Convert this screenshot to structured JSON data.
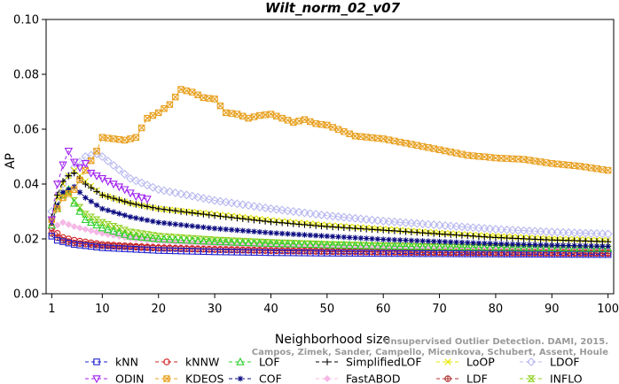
{
  "chart_data": {
    "type": "line",
    "title": "Wilt_norm_02_v07",
    "xlabel": "Neighborhood size",
    "ylabel": "AP",
    "xlim": [
      0,
      101
    ],
    "ylim": [
      0,
      0.1
    ],
    "x_ticks": [
      1,
      10,
      20,
      30,
      40,
      50,
      60,
      70,
      80,
      90,
      100
    ],
    "y_ticks": [
      "0.00",
      "0.02",
      "0.04",
      "0.06",
      "0.08",
      "0.10"
    ],
    "grid": false,
    "legend_position": "bottom",
    "watermark": "Campos, Zimek, Sander, Campello, Micenkova, Schubert, Assent, Houle\nUnsupervised Outlier Detection. DAMI, 2015.",
    "series": [
      {
        "name": "kNN",
        "color": "#1f1fcf",
        "marker": "square",
        "points": [
          [
            1,
            0.021
          ],
          [
            2,
            0.0195
          ],
          [
            3,
            0.019
          ],
          [
            5,
            0.018
          ],
          [
            10,
            0.0168
          ],
          [
            20,
            0.0158
          ],
          [
            30,
            0.0153
          ],
          [
            40,
            0.015
          ],
          [
            50,
            0.0148
          ],
          [
            60,
            0.0147
          ],
          [
            70,
            0.0146
          ],
          [
            80,
            0.0145
          ],
          [
            90,
            0.0144
          ],
          [
            100,
            0.0143
          ]
        ]
      },
      {
        "name": "kNNW",
        "color": "#d01f1f",
        "marker": "circle",
        "points": [
          [
            1,
            0.024
          ],
          [
            2,
            0.022
          ],
          [
            3,
            0.0205
          ],
          [
            5,
            0.0195
          ],
          [
            10,
            0.018
          ],
          [
            20,
            0.0168
          ],
          [
            30,
            0.0162
          ],
          [
            40,
            0.0158
          ],
          [
            50,
            0.0155
          ],
          [
            60,
            0.0153
          ],
          [
            70,
            0.0152
          ],
          [
            80,
            0.0151
          ],
          [
            90,
            0.015
          ],
          [
            100,
            0.0149
          ]
        ]
      },
      {
        "name": "LOF",
        "color": "#2dcf2d",
        "marker": "triangle-up",
        "points": [
          [
            1,
            0.025
          ],
          [
            2,
            0.031
          ],
          [
            3,
            0.036
          ],
          [
            4,
            0.038
          ],
          [
            5,
            0.033
          ],
          [
            7,
            0.027
          ],
          [
            10,
            0.024
          ],
          [
            15,
            0.021
          ],
          [
            20,
            0.02
          ],
          [
            30,
            0.019
          ],
          [
            40,
            0.0183
          ],
          [
            50,
            0.0178
          ],
          [
            60,
            0.0174
          ],
          [
            70,
            0.0171
          ],
          [
            80,
            0.0169
          ],
          [
            90,
            0.0167
          ],
          [
            100,
            0.0165
          ]
        ]
      },
      {
        "name": "SimplifiedLOF",
        "color": "#000000",
        "marker": "plus",
        "points": [
          [
            1,
            0.028
          ],
          [
            2,
            0.036
          ],
          [
            3,
            0.041
          ],
          [
            4,
            0.043
          ],
          [
            5,
            0.044
          ],
          [
            7,
            0.04
          ],
          [
            10,
            0.036
          ],
          [
            15,
            0.033
          ],
          [
            20,
            0.031
          ],
          [
            30,
            0.0285
          ],
          [
            40,
            0.0262
          ],
          [
            50,
            0.0245
          ],
          [
            60,
            0.0232
          ],
          [
            70,
            0.0218
          ],
          [
            80,
            0.0205
          ],
          [
            90,
            0.0196
          ],
          [
            100,
            0.019
          ]
        ]
      },
      {
        "name": "LoOP",
        "color": "#e6e600",
        "marker": "x",
        "points": [
          [
            1,
            0.027
          ],
          [
            2,
            0.035
          ],
          [
            3,
            0.04
          ],
          [
            4,
            0.043
          ],
          [
            5,
            0.045
          ],
          [
            7,
            0.041
          ],
          [
            10,
            0.036
          ],
          [
            15,
            0.033
          ],
          [
            20,
            0.031
          ],
          [
            30,
            0.029
          ],
          [
            40,
            0.0268
          ],
          [
            50,
            0.025
          ],
          [
            60,
            0.0236
          ],
          [
            70,
            0.0222
          ],
          [
            80,
            0.021
          ],
          [
            90,
            0.02
          ],
          [
            100,
            0.0195
          ]
        ]
      },
      {
        "name": "LDOF",
        "color": "#b8b8f0",
        "marker": "diamond",
        "points": [
          [
            1,
            0.03
          ],
          [
            2,
            0.034
          ],
          [
            3,
            0.04
          ],
          [
            5,
            0.046
          ],
          [
            7,
            0.05
          ],
          [
            9,
            0.051
          ],
          [
            10,
            0.05
          ],
          [
            15,
            0.042
          ],
          [
            20,
            0.038
          ],
          [
            30,
            0.034
          ],
          [
            40,
            0.031
          ],
          [
            50,
            0.0285
          ],
          [
            60,
            0.0265
          ],
          [
            70,
            0.025
          ],
          [
            80,
            0.0235
          ],
          [
            90,
            0.0225
          ],
          [
            100,
            0.0218
          ]
        ]
      },
      {
        "name": "ODIN",
        "color": "#a020f0",
        "marker": "triangle-down",
        "points": [
          [
            1,
            0.027
          ],
          [
            2,
            0.04
          ],
          [
            3,
            0.047
          ],
          [
            4,
            0.052
          ],
          [
            5,
            0.048
          ],
          [
            6,
            0.046
          ],
          [
            7,
            0.0475
          ],
          [
            8,
            0.044
          ],
          [
            10,
            0.042
          ],
          [
            12,
            0.04
          ],
          [
            14,
            0.038
          ],
          [
            16,
            0.0355
          ],
          [
            18,
            0.0345
          ]
        ]
      },
      {
        "name": "KDEOS",
        "color": "#e8a020",
        "marker": "square-x",
        "points": [
          [
            1,
            0.027
          ],
          [
            3,
            0.035
          ],
          [
            5,
            0.038
          ],
          [
            7,
            0.045
          ],
          [
            9,
            0.052
          ],
          [
            10,
            0.057
          ],
          [
            12,
            0.0565
          ],
          [
            14,
            0.056
          ],
          [
            16,
            0.057
          ],
          [
            18,
            0.064
          ],
          [
            20,
            0.066
          ],
          [
            22,
            0.069
          ],
          [
            24,
            0.0745
          ],
          [
            26,
            0.0735
          ],
          [
            28,
            0.0715
          ],
          [
            30,
            0.071
          ],
          [
            32,
            0.066
          ],
          [
            34,
            0.0655
          ],
          [
            36,
            0.064
          ],
          [
            38,
            0.065
          ],
          [
            40,
            0.0655
          ],
          [
            42,
            0.064
          ],
          [
            44,
            0.0625
          ],
          [
            46,
            0.0635
          ],
          [
            48,
            0.062
          ],
          [
            50,
            0.0615
          ],
          [
            55,
            0.0575
          ],
          [
            60,
            0.0565
          ],
          [
            65,
            0.0545
          ],
          [
            70,
            0.0525
          ],
          [
            75,
            0.0505
          ],
          [
            80,
            0.0495
          ],
          [
            85,
            0.049
          ],
          [
            90,
            0.0475
          ],
          [
            95,
            0.0465
          ],
          [
            100,
            0.045
          ]
        ]
      },
      {
        "name": "COF",
        "color": "#0a0a80",
        "marker": "asterisk",
        "points": [
          [
            1,
            0.026
          ],
          [
            2,
            0.032
          ],
          [
            3,
            0.037
          ],
          [
            4,
            0.038
          ],
          [
            5,
            0.039
          ],
          [
            7,
            0.035
          ],
          [
            10,
            0.031
          ],
          [
            15,
            0.028
          ],
          [
            20,
            0.026
          ],
          [
            30,
            0.0238
          ],
          [
            40,
            0.0222
          ],
          [
            50,
            0.021
          ],
          [
            60,
            0.0198
          ],
          [
            70,
            0.019
          ],
          [
            80,
            0.0182
          ],
          [
            90,
            0.0177
          ],
          [
            100,
            0.0173
          ]
        ]
      },
      {
        "name": "FastABOD",
        "color": "#f5b8e6",
        "marker": "diamond-filled",
        "points": [
          [
            1,
            0.023
          ],
          [
            2,
            0.025
          ],
          [
            3,
            0.026
          ],
          [
            5,
            0.0245
          ],
          [
            10,
            0.022
          ],
          [
            15,
            0.0202
          ],
          [
            20,
            0.019
          ],
          [
            30,
            0.0178
          ],
          [
            40,
            0.0172
          ],
          [
            50,
            0.0168
          ],
          [
            60,
            0.0164
          ],
          [
            70,
            0.0162
          ],
          [
            80,
            0.016
          ],
          [
            90,
            0.0158
          ],
          [
            100,
            0.0157
          ]
        ]
      },
      {
        "name": "LDF",
        "color": "#b03030",
        "marker": "circle-plus",
        "points": [
          [
            1,
            0.022
          ],
          [
            2,
            0.0205
          ],
          [
            3,
            0.0195
          ],
          [
            5,
            0.0185
          ],
          [
            10,
            0.0175
          ],
          [
            20,
            0.0166
          ],
          [
            30,
            0.0161
          ],
          [
            40,
            0.0157
          ],
          [
            50,
            0.0154
          ],
          [
            60,
            0.0152
          ],
          [
            70,
            0.015
          ],
          [
            80,
            0.0149
          ],
          [
            90,
            0.0148
          ],
          [
            100,
            0.0147
          ]
        ]
      },
      {
        "name": "INFLO",
        "color": "#90d020",
        "marker": "hourglass",
        "points": [
          [
            1,
            0.026
          ],
          [
            2,
            0.032
          ],
          [
            3,
            0.036
          ],
          [
            4,
            0.037
          ],
          [
            5,
            0.034
          ],
          [
            7,
            0.029
          ],
          [
            10,
            0.026
          ],
          [
            15,
            0.0225
          ],
          [
            20,
            0.021
          ],
          [
            30,
            0.0196
          ],
          [
            40,
            0.0187
          ],
          [
            50,
            0.018
          ],
          [
            60,
            0.0175
          ],
          [
            70,
            0.0171
          ],
          [
            80,
            0.0168
          ],
          [
            90,
            0.0165
          ],
          [
            100,
            0.0163
          ]
        ]
      }
    ],
    "legend_order": [
      "kNN",
      "kNNW",
      "LOF",
      "SimplifiedLOF",
      "LoOP",
      "LDOF",
      "ODIN",
      "KDEOS",
      "COF",
      "FastABOD",
      "LDF",
      "INFLO"
    ]
  }
}
